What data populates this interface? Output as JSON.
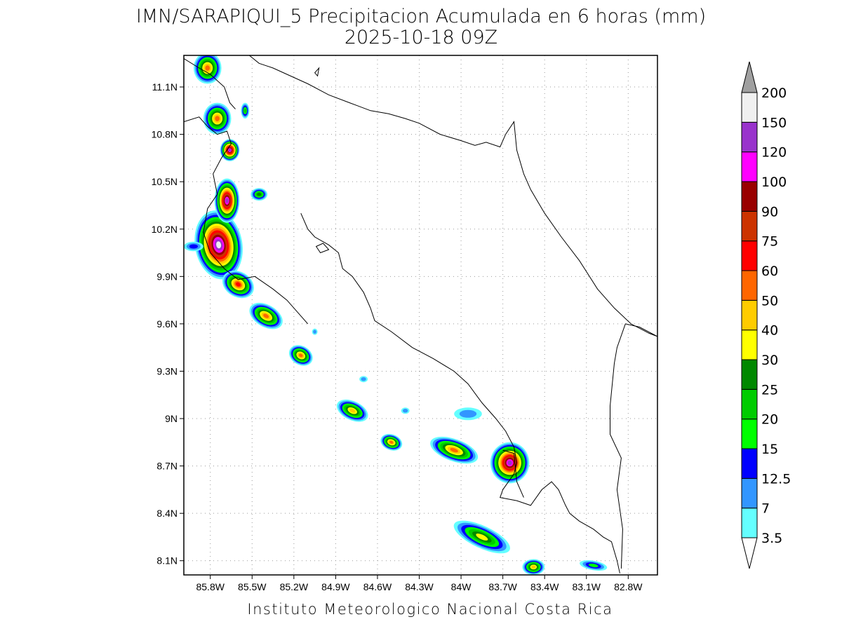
{
  "title": {
    "line1": "IMN/SARAPIQUI_5 Precipitacion Acumulada en 6 horas (mm)",
    "line2": "2025-10-18 09Z"
  },
  "map": {
    "lon_range": [
      -85.99,
      -82.59
    ],
    "lat_range": [
      8.01,
      11.3
    ],
    "x_ticks": [
      {
        "value": -85.8,
        "label": "85.8W"
      },
      {
        "value": -85.5,
        "label": "85.5W"
      },
      {
        "value": -85.2,
        "label": "85.2W"
      },
      {
        "value": -84.9,
        "label": "84.9W"
      },
      {
        "value": -84.6,
        "label": "84.6W"
      },
      {
        "value": -84.3,
        "label": "84.3W"
      },
      {
        "value": -84.0,
        "label": "84W"
      },
      {
        "value": -83.7,
        "label": "83.7W"
      },
      {
        "value": -83.4,
        "label": "83.4W"
      },
      {
        "value": -83.1,
        "label": "83.1W"
      },
      {
        "value": -82.8,
        "label": "82.8W"
      }
    ],
    "y_ticks": [
      {
        "value": 11.1,
        "label": "11.1N"
      },
      {
        "value": 10.8,
        "label": "10.8N"
      },
      {
        "value": 10.5,
        "label": "10.5N"
      },
      {
        "value": 10.2,
        "label": "10.2N"
      },
      {
        "value": 9.9,
        "label": "9.9N"
      },
      {
        "value": 9.6,
        "label": "9.6N"
      },
      {
        "value": 9.3,
        "label": "9.3N"
      },
      {
        "value": 9.0,
        "label": "9N"
      },
      {
        "value": 8.7,
        "label": "8.7N"
      },
      {
        "value": 8.4,
        "label": "8.4N"
      },
      {
        "value": 8.1,
        "label": "8.1N"
      }
    ],
    "grid": true,
    "coastlines": [
      [
        [
          -85.99,
          10.88
        ],
        [
          -85.88,
          10.91
        ],
        [
          -85.82,
          10.85
        ],
        [
          -85.75,
          10.8
        ],
        [
          -85.68,
          10.82
        ],
        [
          -85.65,
          10.74
        ],
        [
          -85.72,
          10.65
        ],
        [
          -85.78,
          10.55
        ],
        [
          -85.75,
          10.42
        ],
        [
          -85.82,
          10.33
        ],
        [
          -85.85,
          10.18
        ],
        [
          -85.8,
          10.05
        ],
        [
          -85.7,
          9.95
        ],
        [
          -85.6,
          9.88
        ],
        [
          -85.48,
          9.9
        ],
        [
          -85.35,
          9.82
        ],
        [
          -85.25,
          9.75
        ],
        [
          -85.1,
          9.6
        ]
      ],
      [
        [
          -85.15,
          10.3
        ],
        [
          -85.1,
          10.2
        ],
        [
          -85.05,
          10.15
        ],
        [
          -84.95,
          10.1
        ],
        [
          -84.88,
          10.05
        ],
        [
          -84.85,
          9.95
        ],
        [
          -84.78,
          9.9
        ],
        [
          -84.7,
          9.8
        ],
        [
          -84.65,
          9.7
        ],
        [
          -84.62,
          9.62
        ],
        [
          -84.5,
          9.55
        ],
        [
          -84.35,
          9.45
        ],
        [
          -84.2,
          9.38
        ],
        [
          -84.05,
          9.3
        ],
        [
          -83.95,
          9.22
        ],
        [
          -83.85,
          9.1
        ],
        [
          -83.75,
          9.0
        ],
        [
          -83.68,
          8.92
        ],
        [
          -83.62,
          8.82
        ],
        [
          -83.6,
          8.72
        ],
        [
          -83.62,
          8.65
        ],
        [
          -83.7,
          8.55
        ],
        [
          -83.72,
          8.5
        ],
        [
          -83.6,
          8.48
        ],
        [
          -83.5,
          8.45
        ],
        [
          -83.42,
          8.55
        ],
        [
          -83.35,
          8.6
        ],
        [
          -83.3,
          8.55
        ],
        [
          -83.25,
          8.45
        ],
        [
          -83.22,
          8.4
        ],
        [
          -83.15,
          8.35
        ],
        [
          -83.05,
          8.3
        ],
        [
          -82.98,
          8.25
        ],
        [
          -82.92,
          8.22
        ],
        [
          -82.88,
          8.1
        ],
        [
          -82.86,
          8.02
        ]
      ],
      [
        [
          -85.99,
          11.28
        ],
        [
          -85.88,
          11.22
        ],
        [
          -85.8,
          11.18
        ],
        [
          -85.7,
          11.1
        ],
        [
          -85.66,
          11.0
        ],
        [
          -85.62,
          10.96
        ]
      ],
      [
        [
          -85.52,
          11.3
        ],
        [
          -85.45,
          11.25
        ],
        [
          -85.35,
          11.22
        ],
        [
          -85.25,
          11.18
        ],
        [
          -85.1,
          11.12
        ],
        [
          -84.95,
          11.05
        ],
        [
          -84.8,
          11.0
        ],
        [
          -84.65,
          10.95
        ],
        [
          -84.52,
          10.93
        ],
        [
          -84.4,
          10.9
        ],
        [
          -84.3,
          10.87
        ],
        [
          -84.15,
          10.8
        ],
        [
          -84.0,
          10.76
        ],
        [
          -83.9,
          10.73
        ],
        [
          -83.82,
          10.75
        ],
        [
          -83.72,
          10.72
        ],
        [
          -83.68,
          10.8
        ],
        [
          -83.62,
          10.88
        ],
        [
          -83.6,
          10.7
        ],
        [
          -83.55,
          10.55
        ],
        [
          -83.5,
          10.45
        ],
        [
          -83.4,
          10.3
        ],
        [
          -83.28,
          10.15
        ],
        [
          -83.15,
          10.0
        ],
        [
          -83.02,
          9.82
        ],
        [
          -82.9,
          9.7
        ],
        [
          -82.78,
          9.6
        ],
        [
          -82.65,
          9.54
        ],
        [
          -82.59,
          9.52
        ]
      ]
    ],
    "borders": [
      [
        [
          -82.59,
          9.52
        ],
        [
          -82.72,
          9.58
        ],
        [
          -82.82,
          9.6
        ],
        [
          -82.88,
          9.45
        ],
        [
          -82.9,
          9.35
        ],
        [
          -82.93,
          9.08
        ],
        [
          -82.93,
          8.9
        ],
        [
          -82.85,
          8.75
        ],
        [
          -82.88,
          8.55
        ],
        [
          -82.84,
          8.3
        ],
        [
          -82.85,
          8.05
        ]
      ],
      [
        [
          -83.7,
          8.8
        ],
        [
          -83.62,
          8.78
        ],
        [
          -83.6,
          8.6
        ],
        [
          -83.55,
          8.5
        ]
      ]
    ],
    "islands": [
      [
        [
          -85.04,
          10.09
        ],
        [
          -84.99,
          10.11
        ],
        [
          -84.95,
          10.07
        ],
        [
          -85.01,
          10.05
        ],
        [
          -85.04,
          10.09
        ]
      ],
      [
        [
          -85.05,
          11.19
        ],
        [
          -85.02,
          11.22
        ],
        [
          -85.03,
          11.17
        ],
        [
          -85.05,
          11.19
        ]
      ]
    ]
  },
  "precip": {
    "palette": [
      "#64FFFF",
      "#3296FF",
      "#0000FF",
      "#00FF00",
      "#00CC00",
      "#008800",
      "#FFFF00",
      "#FFCC00",
      "#FF6600",
      "#FF0000",
      "#CC3300",
      "#990000",
      "#FF00FF",
      "#9933CC",
      "#F0F0F0"
    ],
    "blobs": [
      {
        "lon": -85.74,
        "lat": 10.1,
        "a": 0.17,
        "b": 0.22,
        "rot": -10,
        "level": 14
      },
      {
        "lon": -85.68,
        "lat": 10.38,
        "a": 0.09,
        "b": 0.14,
        "rot": 0,
        "level": 13
      },
      {
        "lon": -85.66,
        "lat": 10.7,
        "a": 0.07,
        "b": 0.07,
        "rot": 0,
        "level": 13
      },
      {
        "lon": -85.82,
        "lat": 11.22,
        "a": 0.1,
        "b": 0.1,
        "rot": 0,
        "level": 8
      },
      {
        "lon": -85.75,
        "lat": 10.9,
        "a": 0.1,
        "b": 0.1,
        "rot": 0,
        "level": 8
      },
      {
        "lon": -85.6,
        "lat": 9.85,
        "a": 0.12,
        "b": 0.08,
        "rot": 30,
        "level": 9
      },
      {
        "lon": -85.4,
        "lat": 9.65,
        "a": 0.13,
        "b": 0.07,
        "rot": 30,
        "level": 8
      },
      {
        "lon": -85.15,
        "lat": 9.4,
        "a": 0.09,
        "b": 0.06,
        "rot": 30,
        "level": 8
      },
      {
        "lon": -84.78,
        "lat": 9.05,
        "a": 0.12,
        "b": 0.06,
        "rot": 25,
        "level": 7
      },
      {
        "lon": -84.5,
        "lat": 8.85,
        "a": 0.08,
        "b": 0.05,
        "rot": 20,
        "level": 8
      },
      {
        "lon": -84.05,
        "lat": 8.8,
        "a": 0.18,
        "b": 0.07,
        "rot": 20,
        "level": 8
      },
      {
        "lon": -83.65,
        "lat": 8.72,
        "a": 0.14,
        "b": 0.13,
        "rot": 0,
        "level": 13
      },
      {
        "lon": -83.85,
        "lat": 8.25,
        "a": 0.22,
        "b": 0.07,
        "rot": 25,
        "level": 6
      },
      {
        "lon": -83.48,
        "lat": 8.06,
        "a": 0.08,
        "b": 0.05,
        "rot": 0,
        "level": 7
      },
      {
        "lon": -83.05,
        "lat": 8.07,
        "a": 0.1,
        "b": 0.03,
        "rot": 10,
        "level": 3
      },
      {
        "lon": -85.45,
        "lat": 10.42,
        "a": 0.06,
        "b": 0.04,
        "rot": 0,
        "level": 5
      },
      {
        "lon": -85.92,
        "lat": 10.09,
        "a": 0.07,
        "b": 0.03,
        "rot": 0,
        "level": 2
      },
      {
        "lon": -85.55,
        "lat": 10.95,
        "a": 0.03,
        "b": 0.05,
        "rot": 0,
        "level": 4
      },
      {
        "lon": -83.95,
        "lat": 9.03,
        "a": 0.1,
        "b": 0.04,
        "rot": 0,
        "level": 1
      },
      {
        "lon": -84.4,
        "lat": 9.05,
        "a": 0.03,
        "b": 0.02,
        "rot": 0,
        "level": 1
      },
      {
        "lon": -84.7,
        "lat": 9.25,
        "a": 0.03,
        "b": 0.02,
        "rot": 0,
        "level": 1
      },
      {
        "lon": -85.05,
        "lat": 9.55,
        "a": 0.02,
        "b": 0.02,
        "rot": 0,
        "level": 1
      }
    ]
  },
  "colorbar": {
    "labels": [
      "3.5",
      "7",
      "12.5",
      "15",
      "20",
      "25",
      "30",
      "40",
      "50",
      "60",
      "75",
      "90",
      "100",
      "120",
      "150",
      "200"
    ],
    "colors": [
      "#64FFFF",
      "#3296FF",
      "#0000FF",
      "#00FF00",
      "#00CC00",
      "#008800",
      "#FFFF00",
      "#FFCC00",
      "#FF6600",
      "#FF0000",
      "#CC3300",
      "#990000",
      "#FF00FF",
      "#9933CC",
      "#F0F0F0"
    ],
    "over_color": "#A0A0A0",
    "under_color": "#FFFFFF"
  },
  "footer": "Instituto Meteorologico Nacional Costa Rica"
}
